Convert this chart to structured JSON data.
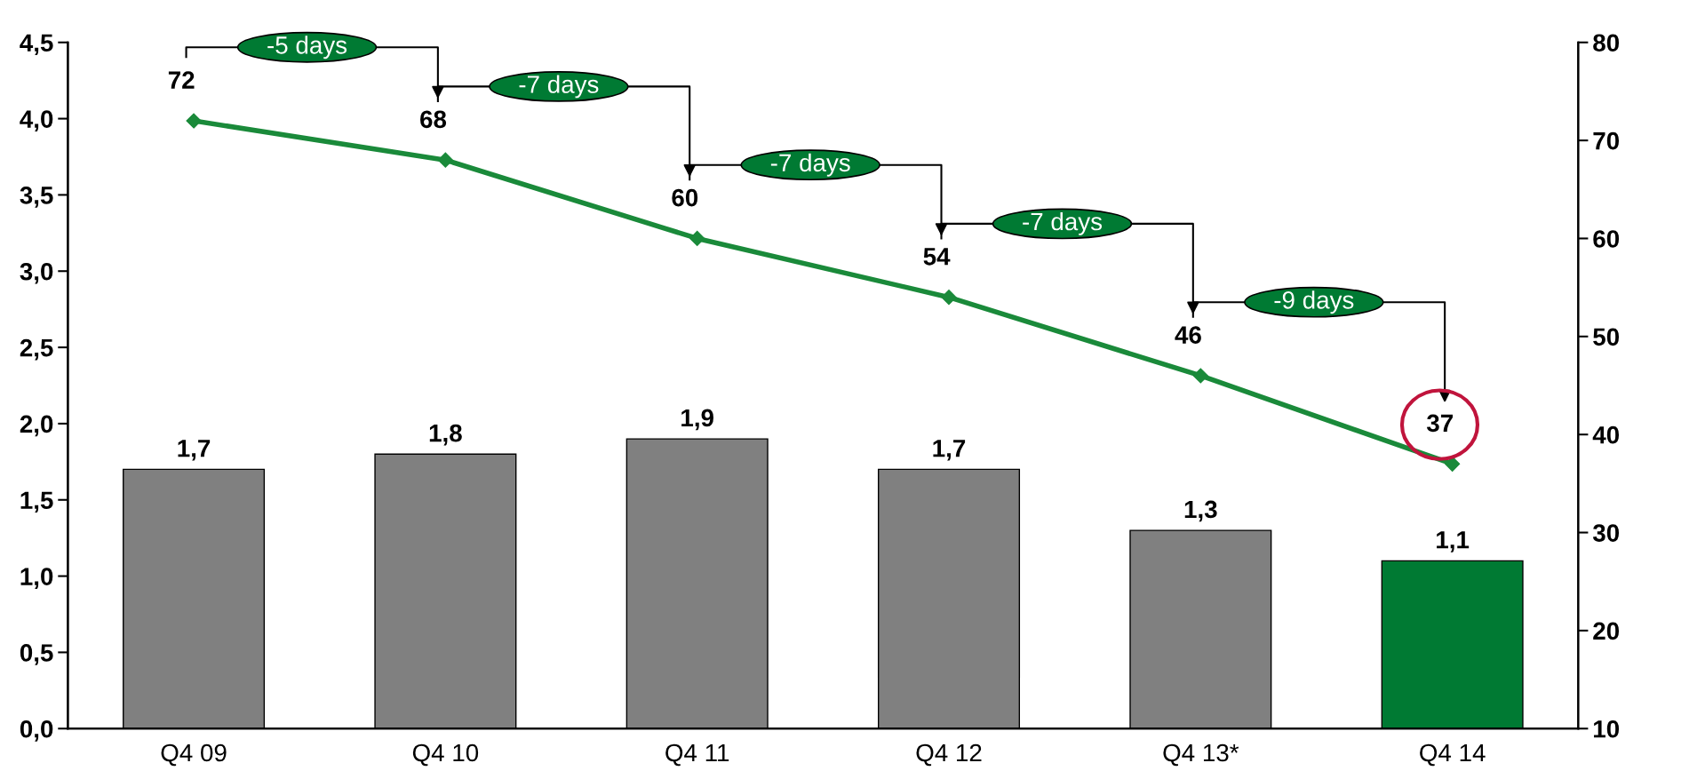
{
  "chart_data": {
    "type": "bar",
    "categories": [
      "Q4 09",
      "Q4 10",
      "Q4 11",
      "Q4 12",
      "Q4 13*",
      "Q4 14"
    ],
    "series": [
      {
        "colors": [
          "#808080",
          "#808080",
          "#808080",
          "#808080",
          "#808080",
          "#007a33"
        ],
        "values": [
          1.7,
          1.8,
          1.9,
          1.7,
          1.3,
          1.1
        ],
        "value_labels": [
          "1,7",
          "1,8",
          "1,9",
          "1,7",
          "1,3",
          "1,1"
        ]
      },
      {
        "type": "line",
        "axis": "y2",
        "color": "#1a8a3a",
        "values": [
          72,
          68,
          60,
          54,
          46,
          37
        ],
        "value_labels": [
          "72",
          "68",
          "60",
          "54",
          "46",
          "37"
        ],
        "marker": "diamond"
      }
    ],
    "ylim": [
      0,
      4.5
    ],
    "yticks": [
      {
        "value": 0,
        "label": "0,0"
      },
      {
        "value": 0.5,
        "label": "0,5"
      },
      {
        "value": 1,
        "label": "1,0"
      },
      {
        "value": 1.5,
        "label": "1,5"
      },
      {
        "value": 2,
        "label": "2,0"
      },
      {
        "value": 2.5,
        "label": "2,5"
      },
      {
        "value": 3,
        "label": "3,0"
      },
      {
        "value": 3.5,
        "label": "3,5"
      },
      {
        "value": 4,
        "label": "4,0"
      },
      {
        "value": 4.5,
        "label": "4,5"
      }
    ],
    "y2lim": [
      10,
      80
    ],
    "y2ticks": [
      10,
      20,
      30,
      40,
      50,
      60,
      70,
      80
    ],
    "annotations": [
      "-5 days",
      "-7 days",
      "-7 days",
      "-7 days",
      "-9 days"
    ],
    "grid": false,
    "legend": false
  }
}
